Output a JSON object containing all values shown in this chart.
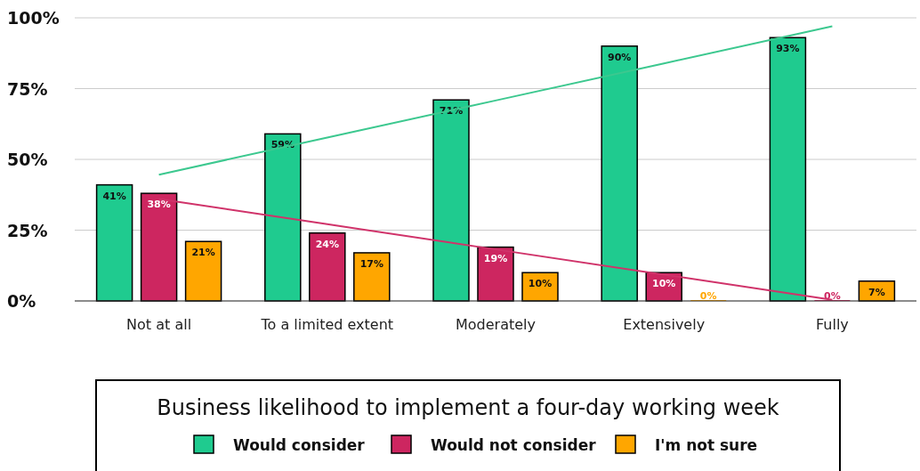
{
  "chart_data": {
    "type": "bar",
    "categories": [
      "Not at all",
      "To a limited extent",
      "Moderately",
      "Extensively",
      "Fully"
    ],
    "series": [
      {
        "name": "Would consider",
        "color": "#1fcb8f",
        "values": [
          41,
          59,
          71,
          90,
          93
        ],
        "value_labels": [
          "41%",
          "59%",
          "71%",
          "90%",
          "93%"
        ]
      },
      {
        "name": "Would not consider",
        "color": "#cd2660",
        "values": [
          38,
          24,
          19,
          10,
          0
        ],
        "value_labels": [
          "38%",
          "24%",
          "19%",
          "10%",
          "0%"
        ]
      },
      {
        "name": "I'm not sure",
        "color": "#ffa600",
        "values": [
          21,
          17,
          10,
          0,
          7
        ],
        "value_labels": [
          "21%",
          "17%",
          "10%",
          "0%",
          "7%"
        ]
      },
      {
        "type": "line",
        "color": "#3cc88f",
        "values": [
          44.6,
          57.7,
          70.8,
          83.9,
          97
        ]
      },
      {
        "type": "line",
        "color": "#d0336a",
        "values": [
          36,
          27.1,
          18.2,
          9.3,
          0.4
        ]
      }
    ],
    "ylim": [
      0,
      100
    ],
    "yticks": [
      {
        "value": 0,
        "label": "0%"
      },
      {
        "value": 25,
        "label": "25%"
      },
      {
        "value": 50,
        "label": "50%"
      },
      {
        "value": 75,
        "label": "75%"
      },
      {
        "value": 100,
        "label": "100%"
      }
    ],
    "grid": "y",
    "legend": "bottom",
    "legend_title": "Business likelihood to implement a four-day working week"
  }
}
